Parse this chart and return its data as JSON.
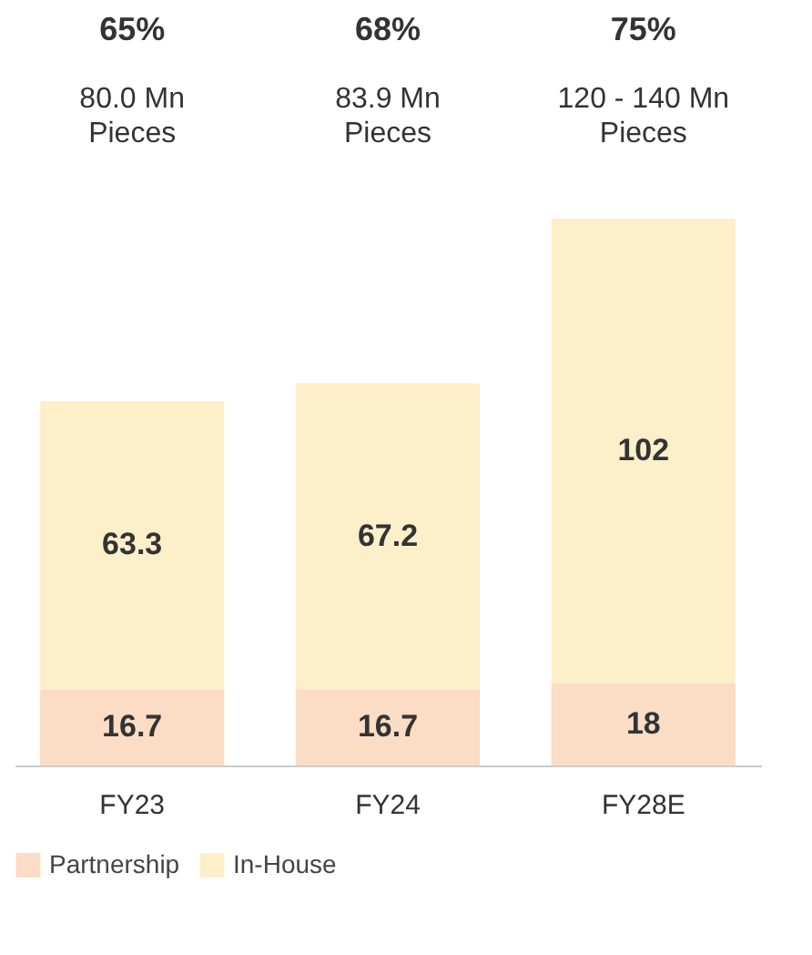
{
  "chart_data": {
    "type": "bar",
    "stacked": true,
    "categories": [
      "FY23",
      "FY24",
      "FY28E"
    ],
    "series": [
      {
        "name": "Partnership",
        "color": "#fbdcc4",
        "values": [
          16.7,
          16.7,
          18
        ]
      },
      {
        "name": "In-House",
        "color": "#fdefc9",
        "values": [
          63.3,
          67.2,
          102
        ]
      }
    ],
    "data_labels": true,
    "legend": "bottom",
    "annotations": [
      "65%",
      "80.0 Mn Pieces",
      "68%",
      "83.9 Mn Pieces",
      "75%",
      "120 - 140 Mn Pieces"
    ]
  }
}
